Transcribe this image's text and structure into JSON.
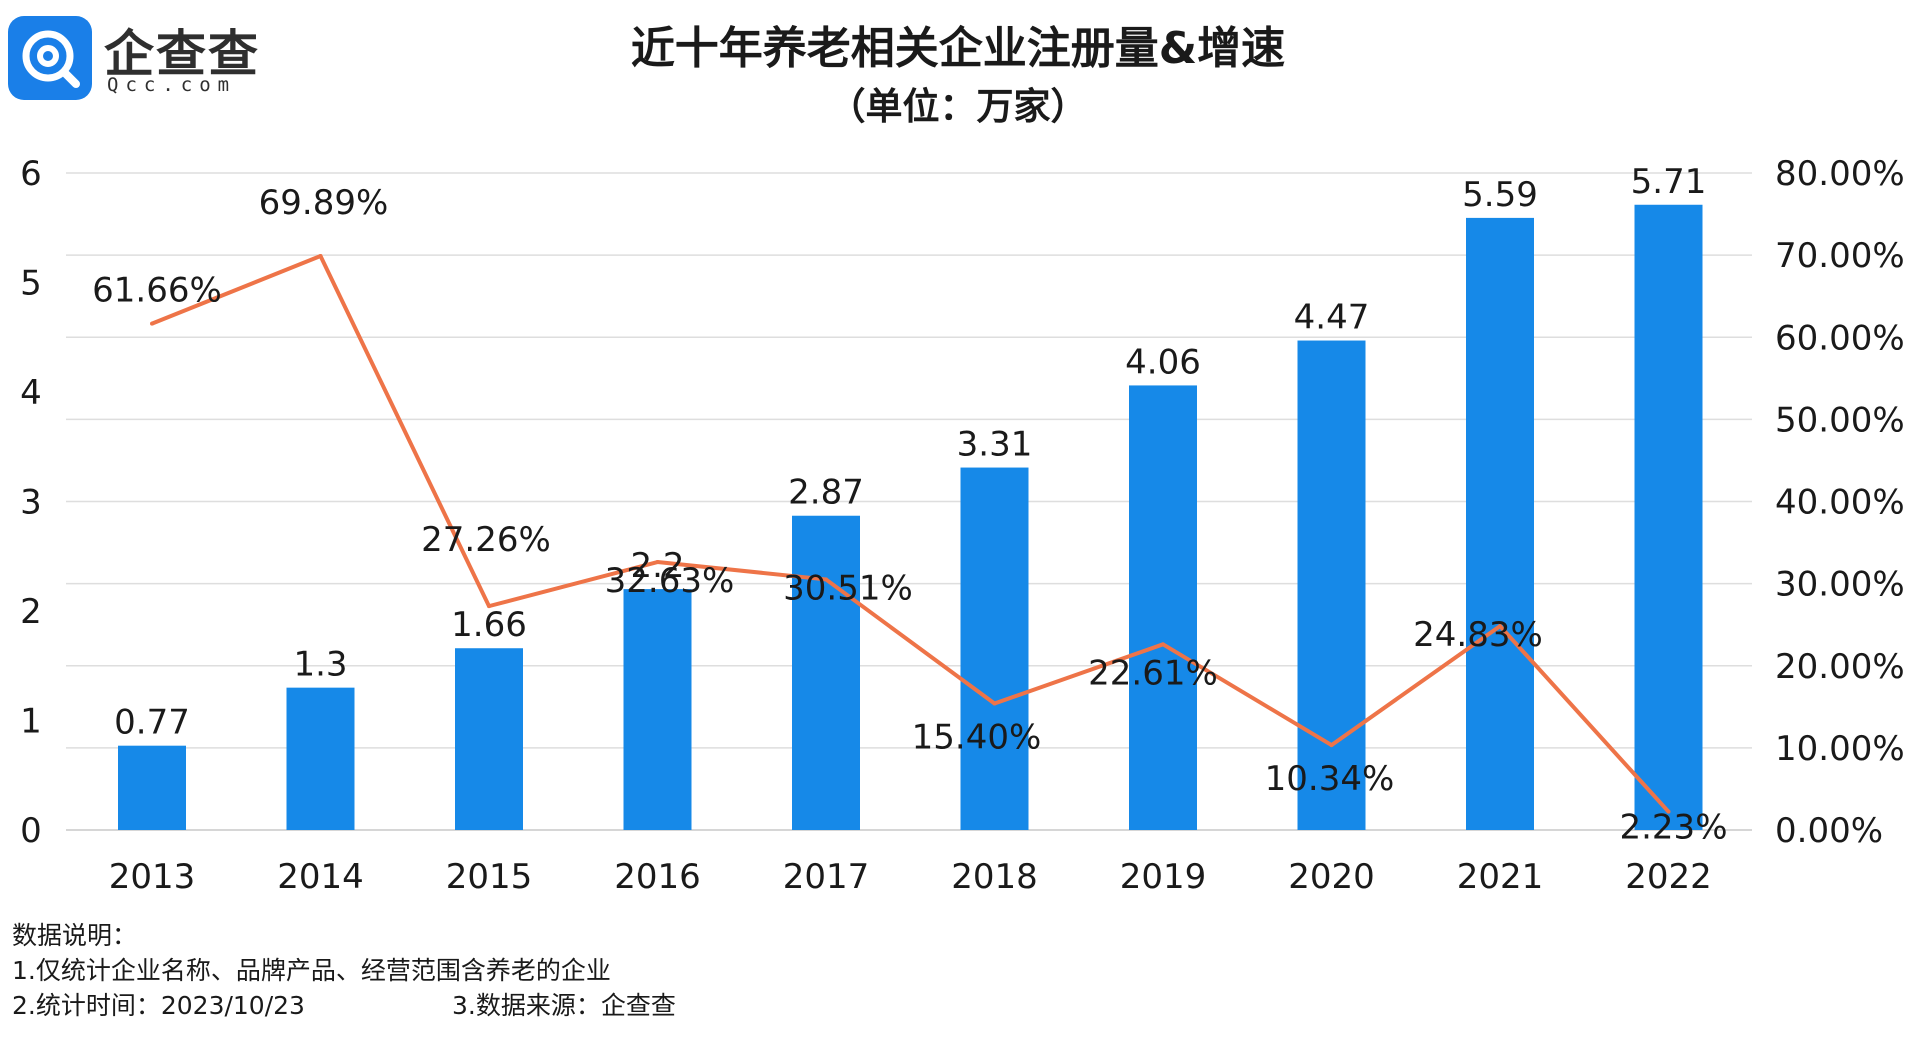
{
  "logo": {
    "name": "企查查",
    "domain": "Qcc.com",
    "icon": "qcc-magnifier-logo-icon",
    "brand_color": "#1a7fe8"
  },
  "title": "近十年养老相关企业注册量&增速",
  "subtitle": "（单位：万家）",
  "notes": {
    "heading": "数据说明：",
    "scope": "1.仅统计企业名称、品牌产品、经营范围含养老的企业",
    "time": "2.统计时间：2023/10/23",
    "source": "3.数据来源：企查查"
  },
  "chart_data": {
    "type": "bar",
    "categories": [
      "2013",
      "2014",
      "2015",
      "2016",
      "2017",
      "2018",
      "2019",
      "2020",
      "2021",
      "2022"
    ],
    "series": [
      {
        "type": "bar",
        "axis": "left",
        "color": "#1689e8",
        "values": [
          0.77,
          1.3,
          1.66,
          2.2,
          2.87,
          3.31,
          4.06,
          4.47,
          5.59,
          5.71
        ],
        "labels": [
          "0.77",
          "1.3",
          "1.66",
          "2.2",
          "2.87",
          "3.31",
          "4.06",
          "4.47",
          "5.59",
          "5.71"
        ]
      },
      {
        "type": "line",
        "axis": "right",
        "color": "#ee7448",
        "values": [
          61.66,
          69.89,
          27.26,
          32.63,
          30.51,
          15.4,
          22.61,
          10.34,
          24.83,
          2.23
        ],
        "labels": [
          "61.66%",
          "69.89%",
          "27.26%",
          "32.63%",
          "30.51%",
          "15.40%",
          "22.61%",
          "10.34%",
          "24.83%",
          "2.23%"
        ]
      }
    ],
    "left_axis": {
      "ylim": [
        0,
        6
      ],
      "ticks": [
        "0",
        "1",
        "2",
        "3",
        "4",
        "5",
        "6"
      ]
    },
    "right_axis": {
      "ylim": [
        0,
        80
      ],
      "ticks": [
        "0.00%",
        "10.00%",
        "20.00%",
        "30.00%",
        "40.00%",
        "50.00%",
        "60.00%",
        "70.00%",
        "80.00%"
      ]
    },
    "grid": true,
    "legend": "none"
  }
}
